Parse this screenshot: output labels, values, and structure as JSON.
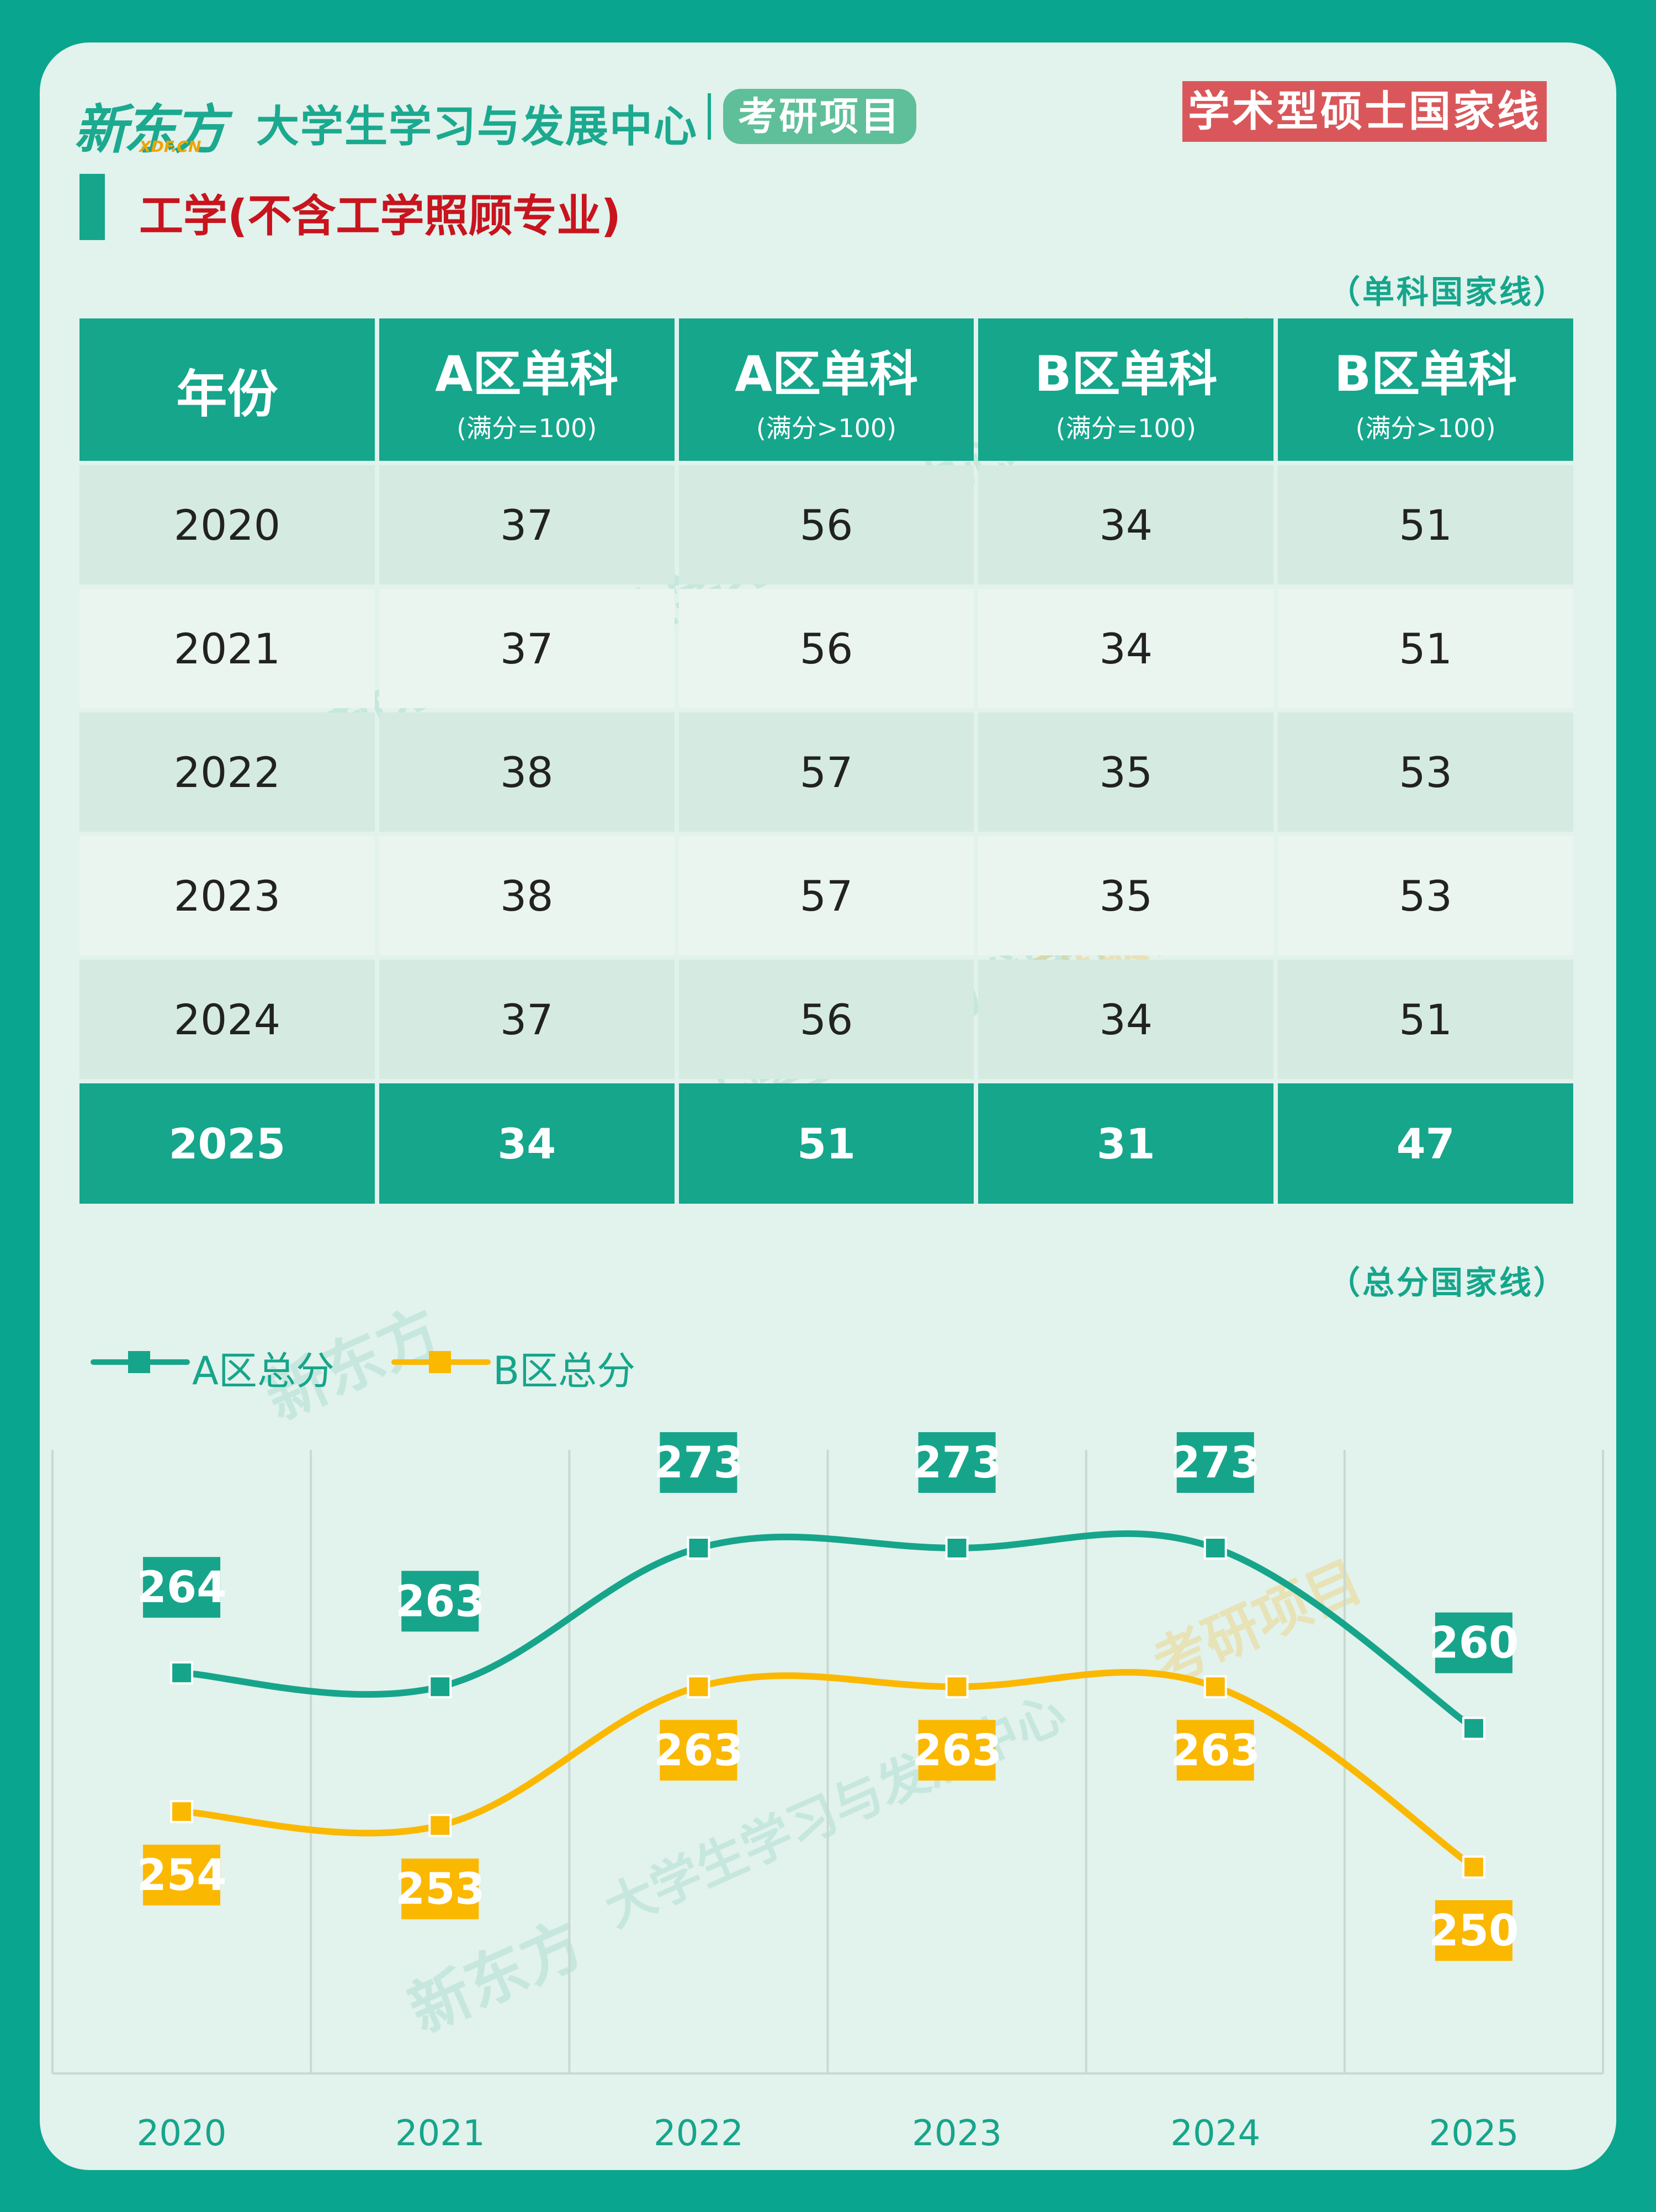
{
  "header": {
    "logo_cn": "新东方",
    "logo_en": "XDF.CN",
    "center_name": "大学生学习与发展中心",
    "project_tag": "考研项目",
    "type_badge": "学术型硕士国家线"
  },
  "section_title": "工学(不含工学照顾专业)",
  "table": {
    "note": "（单科国家线）",
    "headers": [
      {
        "main": "年份",
        "sub": ""
      },
      {
        "main": "A区单科",
        "sub": "(满分=100)"
      },
      {
        "main": "A区单科",
        "sub": "(满分>100)"
      },
      {
        "main": "B区单科",
        "sub": "(满分=100)"
      },
      {
        "main": "B区单科",
        "sub": "(满分>100)"
      }
    ],
    "rows": [
      [
        "2020",
        "37",
        "56",
        "34",
        "51"
      ],
      [
        "2021",
        "37",
        "56",
        "34",
        "51"
      ],
      [
        "2022",
        "38",
        "57",
        "35",
        "53"
      ],
      [
        "2023",
        "38",
        "57",
        "35",
        "53"
      ],
      [
        "2024",
        "37",
        "56",
        "34",
        "51"
      ],
      [
        "2025",
        "34",
        "51",
        "31",
        "47"
      ]
    ]
  },
  "chart_note": "（总分国家线）",
  "colors": {
    "a": "#16a58b",
    "b": "#fbb800",
    "accent": "#d9575a"
  },
  "watermark": {
    "logo": "新东方",
    "logo_en": "XDF.CN",
    "center": "大学生学习与发展中心",
    "project": "考研项目"
  },
  "chart_data": {
    "type": "line",
    "x": [
      "2020",
      "2021",
      "2022",
      "2023",
      "2024",
      "2025"
    ],
    "series": [
      {
        "name": "A区总分",
        "values": [
          264,
          263,
          273,
          273,
          273,
          260
        ],
        "color": "#16a58b"
      },
      {
        "name": "B区总分",
        "values": [
          254,
          253,
          263,
          263,
          263,
          250
        ],
        "color": "#fbb800"
      }
    ],
    "legend_position": "top-left",
    "grid": "vertical"
  }
}
